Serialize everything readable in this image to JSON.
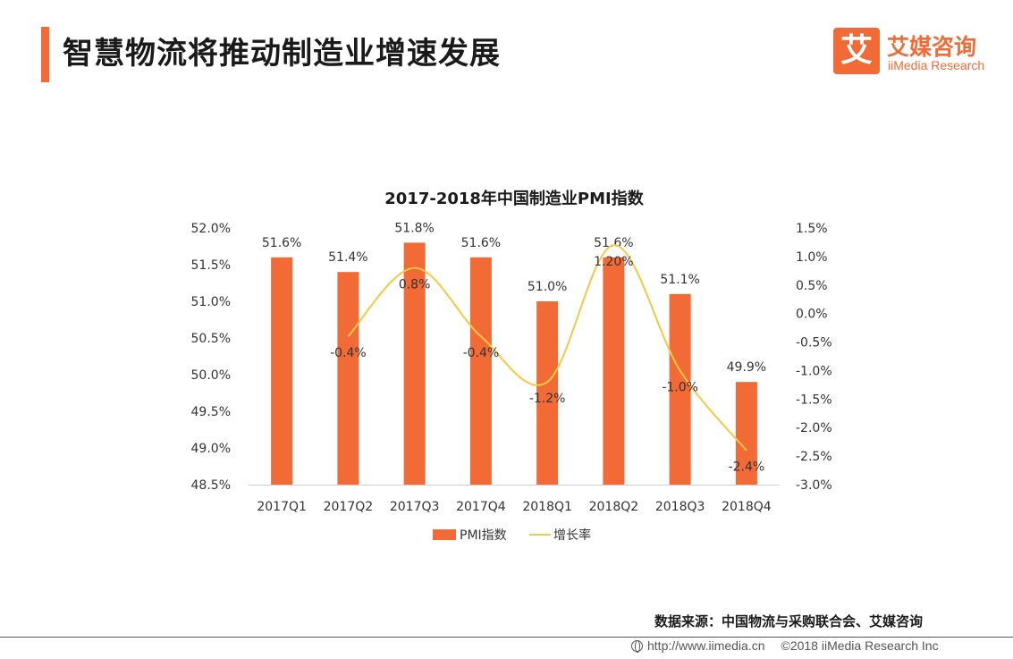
{
  "header": {
    "title": "智慧物流将推动制造业增速发展"
  },
  "logo": {
    "mark": "艾",
    "name_cn": "艾媒咨询",
    "name_en": "iiMedia Research"
  },
  "chart_data": {
    "type": "bar",
    "title": "2017-2018年中国制造业PMI指数",
    "categories": [
      "2017Q1",
      "2017Q2",
      "2017Q3",
      "2017Q4",
      "2018Q1",
      "2018Q2",
      "2018Q3",
      "2018Q4"
    ],
    "series": [
      {
        "name": "PMI指数",
        "type": "bar",
        "axis": "left",
        "color": "#f26a36",
        "values": [
          51.6,
          51.4,
          51.8,
          51.6,
          51.0,
          51.6,
          51.1,
          49.9
        ],
        "labels": [
          "51.6%",
          "51.4%",
          "51.8%",
          "51.6%",
          "51.0%",
          "51.6%",
          "51.1%",
          "49.9%"
        ]
      },
      {
        "name": "增长率",
        "type": "line",
        "axis": "right",
        "color": "#f7c843",
        "values": [
          null,
          -0.4,
          0.8,
          -0.4,
          -1.2,
          1.2,
          -1.0,
          -2.4
        ],
        "labels": [
          "",
          "-0.4%",
          "0.8%",
          "-0.4%",
          "-1.2%",
          "1.20%",
          "-1.0%",
          "-2.4%"
        ]
      }
    ],
    "y_left": {
      "min": 48.5,
      "max": 52.0,
      "ticks": [
        "52.0%",
        "51.5%",
        "51.0%",
        "50.5%",
        "50.0%",
        "49.5%",
        "49.0%",
        "48.5%"
      ]
    },
    "y_right": {
      "min": -3.0,
      "max": 1.5,
      "ticks": [
        "1.5%",
        "1.0%",
        "0.5%",
        "0.0%",
        "-0.5%",
        "-1.0%",
        "-1.5%",
        "-2.0%",
        "-2.5%",
        "-3.0%"
      ]
    },
    "legend": {
      "position": "bottom"
    },
    "grid": false
  },
  "source": "数据来源：中国物流与采购联合会、艾媒咨询",
  "footer": {
    "url": "http://www.iimedia.cn",
    "copyright": "©2018  iiMedia Research  Inc"
  }
}
